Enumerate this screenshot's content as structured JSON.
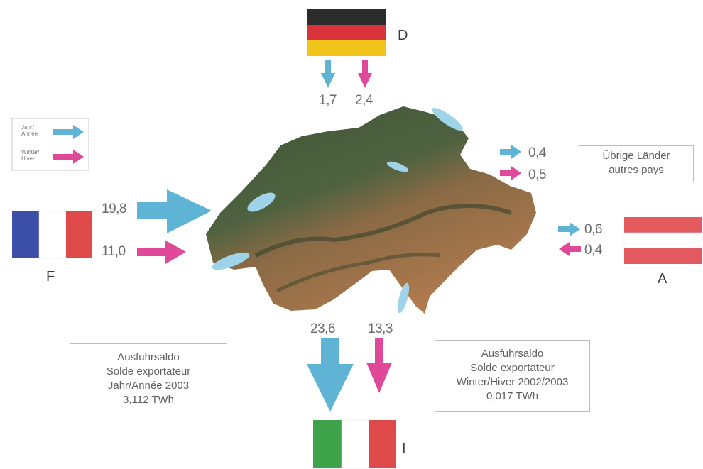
{
  "colors": {
    "year_arrow": "#5fb4d6",
    "winter_arrow": "#e0489a",
    "map_lowland": "#4a5e3a",
    "map_alpine": "#a8754c"
  },
  "legend": {
    "year_label": "Jahr/\nAnnée",
    "winter_label": "Winter/\nHiver"
  },
  "countries": {
    "germany": {
      "code": "D",
      "year": "1,7",
      "winter": "2,4"
    },
    "france": {
      "code": "F",
      "year": "19,8",
      "winter": "11,0"
    },
    "austria": {
      "code": "A",
      "year": "0,6",
      "winter": "0,4"
    },
    "italy": {
      "code": "I",
      "year": "23,6",
      "winter": "13,3"
    },
    "others": {
      "line1": "Übrige Länder",
      "line2": "autres pays",
      "year": "0,4",
      "winter": "0,5"
    }
  },
  "box_year": {
    "line1": "Ausfuhrsaldo",
    "line2": "Solde exportateur",
    "line3": "Jahr/Année 2003",
    "line4": "3,112 TWh"
  },
  "box_winter": {
    "line1": "Ausfuhrsaldo",
    "line2": "Solde exportateur",
    "line3": "Winter/Hiver 2002/2003",
    "line4": "0,017 TWh"
  }
}
